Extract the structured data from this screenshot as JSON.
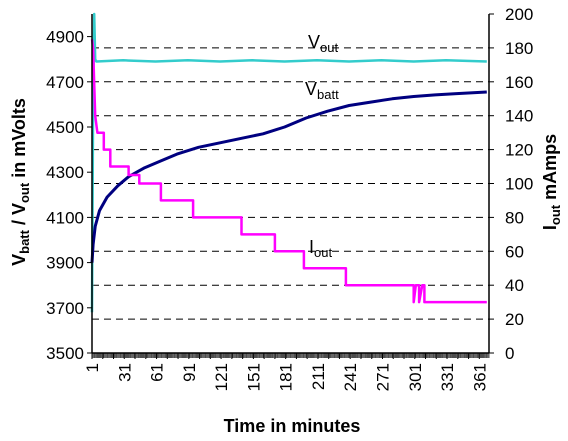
{
  "chart_data": {
    "type": "line",
    "xlabel": "Time in minutes",
    "ylabel_left": {
      "main": "V",
      "sub1": "batt",
      "mid": " / V",
      "sub2": "out",
      "tail": " in mVolts"
    },
    "ylabel_right": {
      "main": "I",
      "sub": "out",
      "tail": " mAmps"
    },
    "xlim": [
      1,
      370
    ],
    "x_ticks": [
      1,
      11,
      21,
      31,
      41,
      51,
      61,
      71,
      81,
      91,
      101,
      111,
      121,
      131,
      141,
      151,
      161,
      171,
      181,
      191,
      201,
      211,
      221,
      231,
      241,
      251,
      261,
      271,
      281,
      291,
      301,
      311,
      321,
      331,
      341,
      351,
      361
    ],
    "x_tick_labels": [
      "1",
      "31",
      "61",
      "91",
      "121",
      "151",
      "181",
      "211",
      "241",
      "271",
      "301",
      "331",
      "361"
    ],
    "y_left": {
      "lim": [
        3500,
        5000
      ],
      "ticks": [
        "3500",
        "3700",
        "3900",
        "4100",
        "4300",
        "4500",
        "4700",
        "4900"
      ]
    },
    "y_right": {
      "lim": [
        0,
        200
      ],
      "ticks": [
        "0",
        "20",
        "40",
        "60",
        "80",
        "100",
        "120",
        "140",
        "160",
        "180",
        "200"
      ]
    },
    "grid": "dashed horizontal",
    "series": [
      {
        "name": {
          "main": "V",
          "sub": "out"
        },
        "axis": "left",
        "color": "#33CCCC",
        "points": [
          [
            1,
            3680
          ],
          [
            2,
            4600
          ],
          [
            3,
            5000
          ],
          [
            4,
            4800
          ],
          [
            5,
            4790
          ],
          [
            30,
            4795
          ],
          [
            60,
            4790
          ],
          [
            90,
            4795
          ],
          [
            120,
            4790
          ],
          [
            150,
            4795
          ],
          [
            180,
            4790
          ],
          [
            210,
            4795
          ],
          [
            240,
            4790
          ],
          [
            270,
            4795
          ],
          [
            300,
            4790
          ],
          [
            330,
            4795
          ],
          [
            368,
            4790
          ]
        ]
      },
      {
        "name": {
          "main": "V",
          "sub": "batt"
        },
        "axis": "left",
        "color": "#000080",
        "points": [
          [
            1,
            3900
          ],
          [
            2,
            3980
          ],
          [
            4,
            4060
          ],
          [
            8,
            4130
          ],
          [
            15,
            4190
          ],
          [
            25,
            4240
          ],
          [
            35,
            4280
          ],
          [
            50,
            4320
          ],
          [
            65,
            4350
          ],
          [
            80,
            4380
          ],
          [
            100,
            4410
          ],
          [
            120,
            4430
          ],
          [
            140,
            4450
          ],
          [
            160,
            4470
          ],
          [
            180,
            4500
          ],
          [
            200,
            4540
          ],
          [
            220,
            4570
          ],
          [
            240,
            4595
          ],
          [
            260,
            4610
          ],
          [
            280,
            4625
          ],
          [
            300,
            4635
          ],
          [
            320,
            4642
          ],
          [
            340,
            4648
          ],
          [
            368,
            4655
          ]
        ]
      },
      {
        "name": {
          "main": "I",
          "sub": "out"
        },
        "axis": "right",
        "color": "#FF00FF",
        "points": [
          [
            1,
            185
          ],
          [
            2,
            180
          ],
          [
            4,
            140
          ],
          [
            6,
            130
          ],
          [
            12,
            130
          ],
          [
            12,
            120
          ],
          [
            18,
            120
          ],
          [
            18,
            110
          ],
          [
            35,
            110
          ],
          [
            35,
            105
          ],
          [
            45,
            105
          ],
          [
            45,
            100
          ],
          [
            65,
            100
          ],
          [
            65,
            90
          ],
          [
            95,
            90
          ],
          [
            95,
            80
          ],
          [
            140,
            80
          ],
          [
            140,
            70
          ],
          [
            171,
            70
          ],
          [
            171,
            60
          ],
          [
            198,
            60
          ],
          [
            198,
            50
          ],
          [
            237,
            50
          ],
          [
            237,
            40
          ],
          [
            300,
            40
          ],
          [
            300,
            30
          ],
          [
            302,
            40
          ],
          [
            305,
            40
          ],
          [
            305,
            30
          ],
          [
            308,
            40
          ],
          [
            310,
            40
          ],
          [
            310,
            30
          ],
          [
            368,
            30
          ]
        ]
      }
    ]
  }
}
